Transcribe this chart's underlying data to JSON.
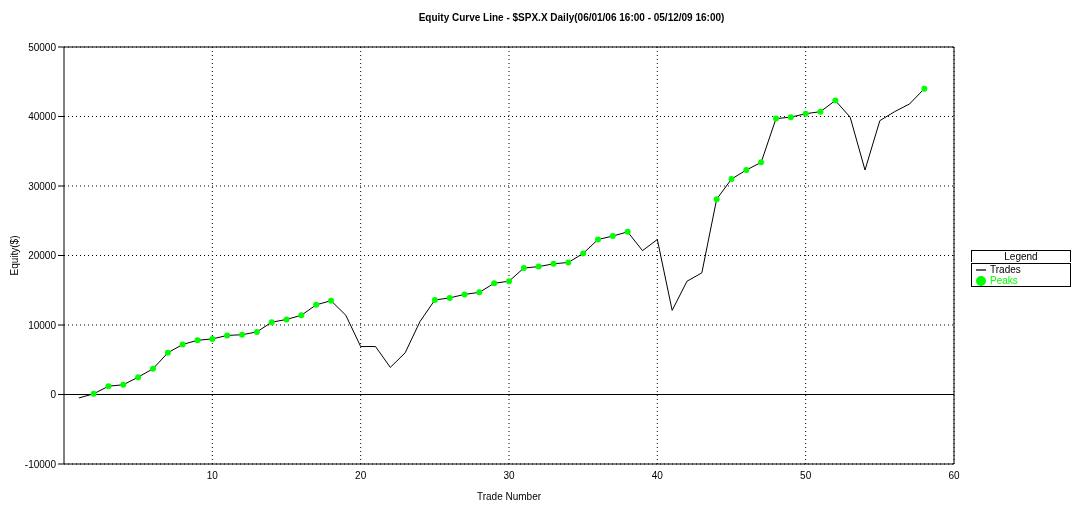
{
  "chart_data": {
    "type": "line",
    "title": "Equity Curve Line - $SPX.X Daily(06/01/06 16:00 - 05/12/09 16:00)",
    "xlabel": "Trade Number",
    "ylabel": "Equity($)",
    "legend_title": "Legend",
    "x": [
      1,
      2,
      3,
      4,
      5,
      6,
      7,
      8,
      9,
      10,
      11,
      12,
      13,
      14,
      15,
      16,
      17,
      18,
      19,
      20,
      21,
      22,
      23,
      24,
      25,
      26,
      27,
      28,
      29,
      30,
      31,
      32,
      33,
      34,
      35,
      36,
      37,
      38,
      39,
      40,
      41,
      42,
      43,
      44,
      45,
      46,
      47,
      48,
      49,
      50,
      51,
      52,
      53,
      54,
      55,
      56,
      57,
      58
    ],
    "series": [
      {
        "name": "Trades",
        "type": "line",
        "color": "#000000",
        "marker": "none",
        "values": [
          -500,
          100,
          1200,
          1400,
          2500,
          3700,
          6000,
          7200,
          7800,
          8000,
          8500,
          8600,
          9000,
          10400,
          10800,
          11400,
          12900,
          13500,
          11400,
          6900,
          6900,
          3900,
          6000,
          10500,
          13600,
          13900,
          14400,
          14700,
          16000,
          16300,
          18200,
          18400,
          18800,
          19000,
          20300,
          22300,
          22800,
          23400,
          20700,
          22300,
          12100,
          16300,
          17500,
          28100,
          31000,
          32300,
          33400,
          39700,
          39900,
          40400,
          40700,
          42300,
          39900,
          32300,
          39400,
          40700,
          41800,
          44000
        ]
      },
      {
        "name": "Peaks",
        "type": "scatter",
        "color": "#00ff00",
        "marker": "circle",
        "values": [
          null,
          100,
          1200,
          1400,
          2500,
          3700,
          6000,
          7200,
          7800,
          8000,
          8500,
          8600,
          9000,
          10400,
          10800,
          11400,
          12900,
          13500,
          null,
          null,
          null,
          null,
          null,
          null,
          13600,
          13900,
          14400,
          14700,
          16000,
          16300,
          18200,
          18400,
          18800,
          19000,
          20300,
          22300,
          22800,
          23400,
          null,
          null,
          null,
          null,
          null,
          28100,
          31000,
          32300,
          33400,
          39700,
          39900,
          40400,
          40700,
          42300,
          null,
          null,
          null,
          null,
          null,
          44000
        ]
      }
    ],
    "xlim": [
      0,
      60
    ],
    "xticks": [
      10,
      20,
      30,
      40,
      50,
      60
    ],
    "ylim": [
      -10000,
      50000
    ],
    "yticks": [
      -10000,
      0,
      10000,
      20000,
      30000,
      40000,
      50000
    ],
    "grid": true,
    "legend": "right",
    "ref_lines": [
      {
        "axis": "y",
        "value": 0,
        "color": "#000000"
      }
    ]
  }
}
